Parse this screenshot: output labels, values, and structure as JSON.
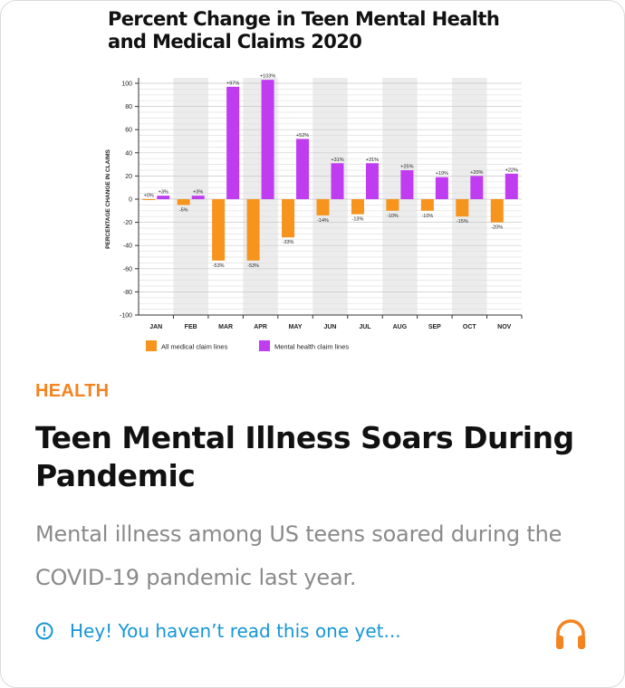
{
  "chart_data": {
    "type": "bar",
    "title_line1": "Percent Change in Teen Mental Health",
    "title_line2": "and Medical Claims 2020",
    "ylabel": "PERCENTAGE CHANGE IN CLAIMS",
    "ylim": [
      -100,
      100
    ],
    "yticks": [
      "100",
      "80",
      "60",
      "40",
      "20",
      "0",
      "-20",
      "-40",
      "-60",
      "-80",
      "-100"
    ],
    "categories": [
      "JAN",
      "FEB",
      "MAR",
      "APR",
      "MAY",
      "JUN",
      "JUL",
      "AUG",
      "SEP",
      "OCT",
      "NOV"
    ],
    "series": [
      {
        "name": "All medical claim lines",
        "color": "#f7941d",
        "values": [
          0,
          -5,
          -53,
          -53,
          -33,
          -14,
          -13,
          -10,
          -10,
          -15,
          -20
        ],
        "labels": [
          "+0%",
          "-5%",
          "-53%",
          "-53%",
          "-33%",
          "-14%",
          "-13%",
          "-10%",
          "-10%",
          "-15%",
          "-20%"
        ]
      },
      {
        "name": "Mental health claim lines",
        "color": "#c03cf0",
        "values": [
          3,
          3,
          97,
          103,
          52,
          31,
          31,
          25,
          19,
          20,
          22
        ],
        "labels": [
          "+3%",
          "+3%",
          "+97%",
          "+103%",
          "+52%",
          "+31%",
          "+31%",
          "+25%",
          "+19%",
          "+20%",
          "+22%"
        ]
      }
    ],
    "grid": true,
    "legend_position": "bottom"
  },
  "article": {
    "category": "HEALTH",
    "headline": "Teen Mental Illness Soars During Pandemic",
    "summary": "Mental illness among US teens soared during the COVID-19 pandemic last year.",
    "unread_notice": "Hey! You haven’t read this one yet..."
  },
  "icons": {
    "info": "info-circle-icon",
    "listen": "headphones-icon"
  },
  "colors": {
    "accent": "#f5831f",
    "link": "#1796d6"
  }
}
